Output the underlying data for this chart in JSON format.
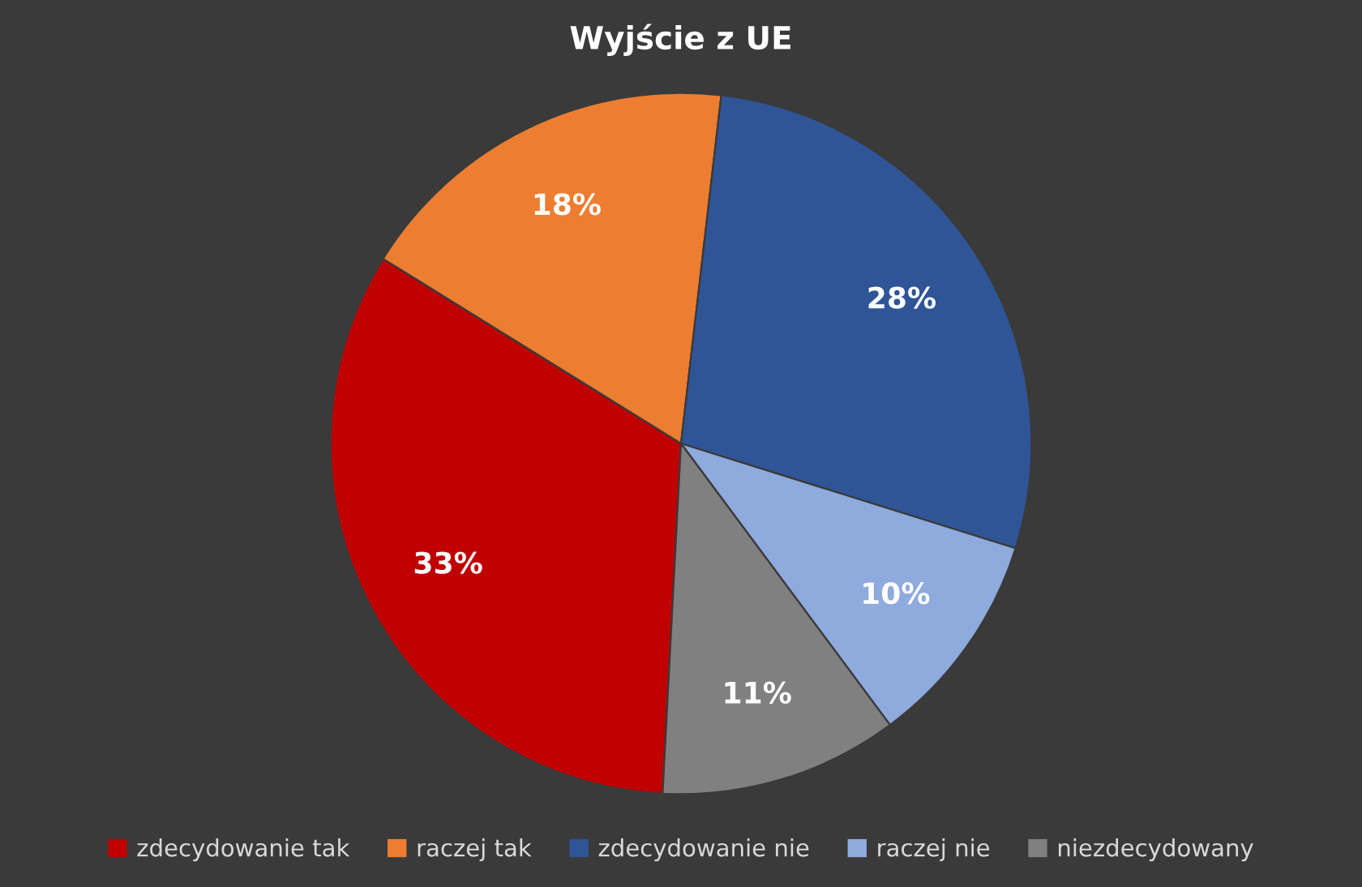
{
  "chart_data": {
    "type": "pie",
    "title": "Wyjście z UE",
    "categories": [
      "zdecydowanie tak",
      "raczej tak",
      "zdecydowanie nie",
      "raczej nie",
      "niezdecydowany"
    ],
    "values": [
      33,
      18,
      28,
      10,
      11
    ],
    "value_labels": [
      "33%",
      "18%",
      "28%",
      "10%",
      "11%"
    ],
    "colors": [
      "#c00000",
      "#ed7d31",
      "#2f5597",
      "#8faadc",
      "#808080"
    ],
    "legend": "bottom"
  }
}
